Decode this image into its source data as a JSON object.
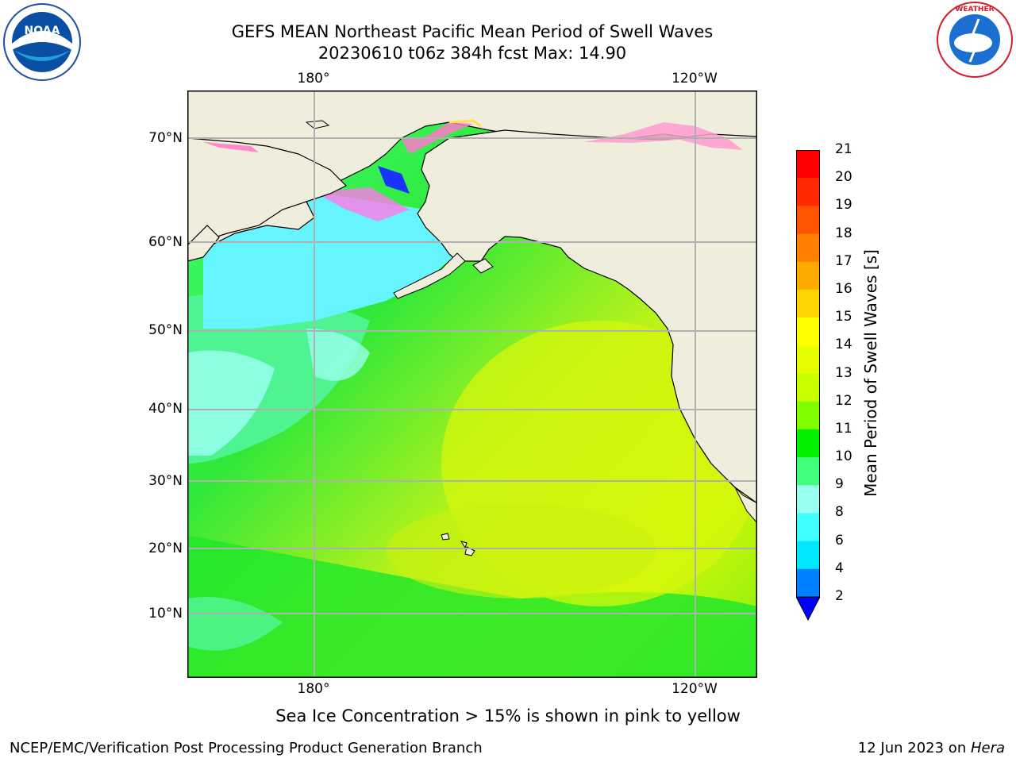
{
  "title": {
    "line1": "GEFS MEAN Northeast Pacific Mean Period of Swell Waves",
    "line2": "20230610 t06z 384h fcst   Max: 14.90"
  },
  "map": {
    "lon_ticks_top": [
      "180°",
      "120°W"
    ],
    "lon_ticks_bottom": [
      "180°",
      "120°W"
    ],
    "lat_ticks": [
      "70°N",
      "60°N",
      "50°N",
      "40°N",
      "30°N",
      "20°N",
      "10°N"
    ],
    "land_color": "#efeedc",
    "grid_color": "#b0b0b0"
  },
  "colorbar": {
    "label": "Mean Period of Swell Waves [s]",
    "ticks": [
      "21",
      "20",
      "19",
      "18",
      "17",
      "16",
      "15",
      "14",
      "13",
      "12",
      "11",
      "10",
      "9",
      "8",
      "6",
      "4",
      "2"
    ],
    "colors_top_to_bottom": [
      "#ff0000",
      "#ff2a00",
      "#ff5500",
      "#ff8000",
      "#ffaa00",
      "#ffd400",
      "#ffff00",
      "#e6ff00",
      "#c8ff00",
      "#80ff00",
      "#00f000",
      "#40ff7a",
      "#99ffee",
      "#40ffff",
      "#00e8ff",
      "#0080ff"
    ],
    "under_color": "#0000ff"
  },
  "note": "Sea Ice Concentration > 15% is shown in pink to yellow",
  "footer": {
    "left": "NCEP/EMC/Verification Post Processing Product Generation Branch",
    "right_date": "12 Jun 2023 on ",
    "right_machine": "Hera"
  },
  "logos": {
    "left": "NOAA",
    "right": "NATIONAL WEATHER SERVICE"
  }
}
